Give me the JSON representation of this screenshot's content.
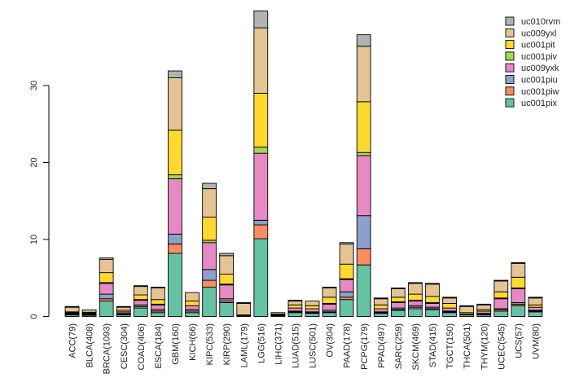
{
  "chart_data": {
    "type": "bar",
    "stacked": true,
    "title": "",
    "xlabel": "",
    "ylabel": "",
    "ylim": [
      0,
      40
    ],
    "yticks": [
      0,
      10,
      20,
      30
    ],
    "legend_position": "top-right",
    "categories": [
      "ACC(79)",
      "BLCA(408)",
      "BRCA(1093)",
      "CESC(304)",
      "COAD(406)",
      "ESCA(184)",
      "GBM(160)",
      "KICH(66)",
      "KIPC(533)",
      "KIRP(290)",
      "LAML(179)",
      "LGG(516)",
      "LIHC(371)",
      "LUAD(515)",
      "LUSC(501)",
      "OV(304)",
      "PAAD(178)",
      "PCPG(179)",
      "PPAD(497)",
      "SARC(259)",
      "SKCM(469)",
      "STAD(415)",
      "TGCT(150)",
      "THCA(501)",
      "THYM(120)",
      "UCEC(545)",
      "UCS(57)",
      "UVM(80)"
    ],
    "series": [
      {
        "name": "uc001pix",
        "color": "#66c2a5",
        "values": [
          0.2,
          0.15,
          2.0,
          0.2,
          1.1,
          0.5,
          8.2,
          0.5,
          3.8,
          1.8,
          0.1,
          10.1,
          0.1,
          0.5,
          0.4,
          0.5,
          2.2,
          6.7,
          0.4,
          0.8,
          1.0,
          0.9,
          0.5,
          0.2,
          0.2,
          0.7,
          1.4,
          0.6
        ]
      },
      {
        "name": "uc001piw",
        "color": "#fc8d62",
        "values": [
          0.1,
          0.1,
          0.3,
          0.1,
          0.2,
          0.2,
          1.2,
          0.2,
          0.9,
          0.2,
          0.0,
          1.8,
          0.1,
          0.1,
          0.1,
          0.1,
          0.3,
          2.1,
          0.1,
          0.1,
          0.2,
          0.1,
          0.1,
          0.0,
          0.1,
          0.2,
          0.2,
          0.1
        ]
      },
      {
        "name": "uc001piu",
        "color": "#8da0cb",
        "values": [
          0.1,
          0.1,
          0.6,
          0.1,
          0.2,
          0.2,
          1.3,
          0.2,
          1.4,
          0.3,
          0.0,
          0.6,
          0.0,
          0.1,
          0.1,
          0.2,
          0.7,
          4.3,
          0.1,
          0.2,
          0.2,
          0.2,
          0.1,
          0.0,
          0.1,
          0.1,
          0.2,
          0.1
        ]
      },
      {
        "name": "uc009yxk",
        "color": "#e78ac3",
        "values": [
          0.1,
          0.1,
          1.4,
          0.2,
          0.6,
          0.6,
          7.2,
          0.5,
          3.5,
          1.8,
          0.0,
          8.7,
          0.1,
          0.4,
          0.4,
          0.8,
          1.6,
          7.8,
          0.4,
          0.7,
          0.6,
          0.5,
          0.4,
          0.1,
          0.3,
          1.3,
          1.8,
          0.4
        ]
      },
      {
        "name": "uc001piv",
        "color": "#a6d854",
        "values": [
          0.0,
          0.0,
          0.1,
          0.0,
          0.1,
          0.1,
          0.5,
          0.0,
          0.3,
          0.1,
          0.0,
          0.8,
          0.0,
          0.0,
          0.0,
          0.1,
          0.1,
          0.4,
          0.0,
          0.1,
          0.1,
          0.1,
          0.0,
          0.0,
          0.0,
          0.1,
          0.1,
          0.0
        ]
      },
      {
        "name": "uc001pit",
        "color": "#ffd92f",
        "values": [
          0.1,
          0.1,
          1.3,
          0.2,
          0.6,
          0.6,
          5.8,
          0.6,
          3.0,
          1.3,
          0.1,
          7.0,
          0.0,
          0.4,
          0.4,
          0.8,
          1.9,
          6.6,
          0.5,
          0.6,
          0.8,
          0.8,
          0.6,
          0.2,
          0.2,
          0.8,
          1.4,
          0.3
        ]
      },
      {
        "name": "uc009yxl",
        "color": "#e5c494",
        "values": [
          0.6,
          0.3,
          1.7,
          0.4,
          1.1,
          1.5,
          6.8,
          1.1,
          3.7,
          2.4,
          1.5,
          8.5,
          0.2,
          0.5,
          0.6,
          1.2,
          2.6,
          7.2,
          0.8,
          1.1,
          1.4,
          1.6,
          0.7,
          0.8,
          0.6,
          1.4,
          1.8,
          0.9
        ]
      },
      {
        "name": "uc010rvm",
        "color": "#b3b3b3",
        "values": [
          0.1,
          0.0,
          0.2,
          0.1,
          0.1,
          0.1,
          0.9,
          0.0,
          0.7,
          0.3,
          0.1,
          2.2,
          0.0,
          0.1,
          0.0,
          0.1,
          0.2,
          1.5,
          0.1,
          0.1,
          0.1,
          0.1,
          0.1,
          0.1,
          0.1,
          0.1,
          0.1,
          0.1
        ]
      }
    ]
  }
}
